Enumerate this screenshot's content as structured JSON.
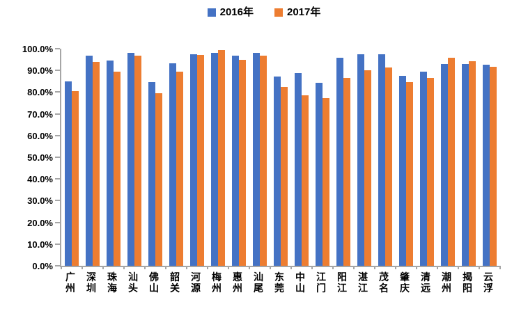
{
  "y_axis": {
    "ticks": [
      "100.0%",
      "90.0%",
      "80.0%",
      "70.0%",
      "60.0%",
      "50.0%",
      "40.0%",
      "30.0%",
      "20.0%",
      "10.0%",
      "0.0%"
    ]
  },
  "chart_data": {
    "type": "bar",
    "title": "",
    "xlabel": "",
    "ylabel": "",
    "ylim": [
      0,
      100
    ],
    "y_tick_step": 10,
    "y_tick_format": "0.0%",
    "grid": false,
    "legend_position": "top-center",
    "categories": [
      "广州",
      "深圳",
      "珠海",
      "汕头",
      "佛山",
      "韶关",
      "河源",
      "梅州",
      "惠州",
      "汕尾",
      "东莞",
      "中山",
      "江门",
      "阳江",
      "湛江",
      "茂名",
      "肇庆",
      "清远",
      "潮州",
      "揭阳",
      "云浮"
    ],
    "series": [
      {
        "name": "2016年",
        "color": "#4472C4",
        "values": [
          84.9,
          96.9,
          94.7,
          98.0,
          84.6,
          93.3,
          97.4,
          98.1,
          96.8,
          98.2,
          87.3,
          88.9,
          84.4,
          95.8,
          97.3,
          97.5,
          87.5,
          89.5,
          93.0,
          92.8,
          92.5
        ]
      },
      {
        "name": "2017年",
        "color": "#ED7D31",
        "values": [
          80.6,
          94.0,
          89.3,
          96.8,
          79.6,
          89.4,
          97.1,
          99.5,
          94.8,
          96.9,
          82.5,
          78.4,
          77.3,
          86.6,
          90.0,
          91.5,
          84.6,
          86.6,
          95.8,
          94.3,
          91.7
        ]
      }
    ]
  },
  "colors": {
    "axis": "#a6a6a6",
    "text": "#000000",
    "background": "#ffffff"
  }
}
